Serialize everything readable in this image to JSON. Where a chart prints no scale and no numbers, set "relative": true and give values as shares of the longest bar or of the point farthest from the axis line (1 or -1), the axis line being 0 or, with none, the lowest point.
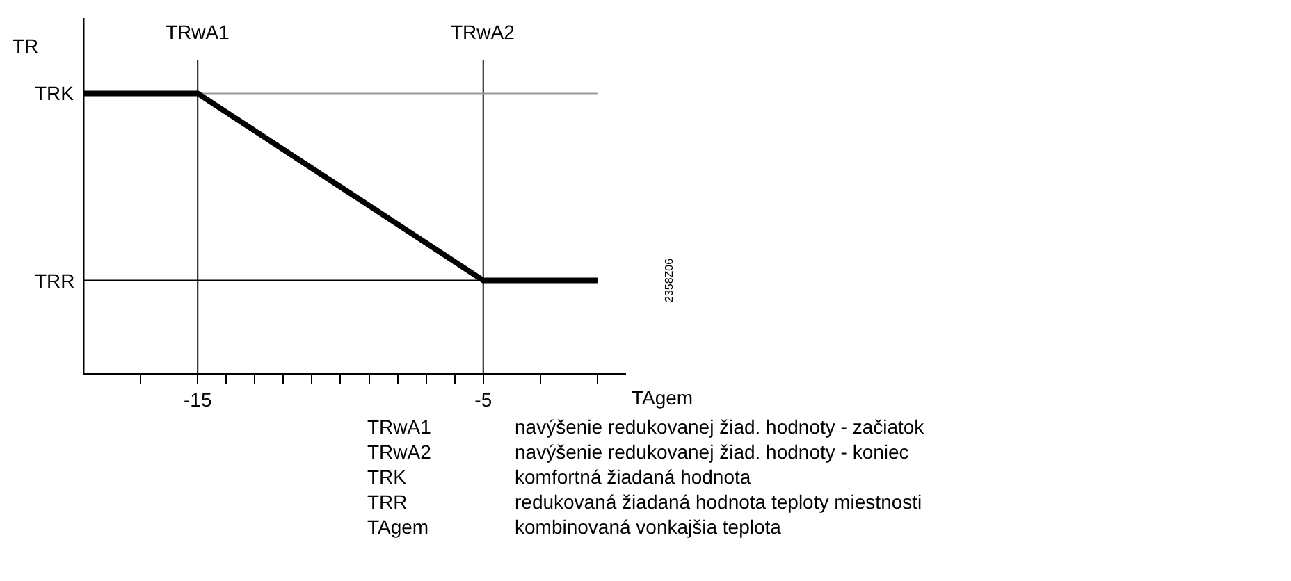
{
  "chart_data": {
    "type": "line",
    "relative": true,
    "ylabel": "TR",
    "xlabel": "TAgem",
    "x": [
      -19,
      -15,
      -5,
      -1
    ],
    "series": [
      {
        "color": "#000000",
        "values": [
          1,
          1,
          0.33,
          0.33
        ]
      }
    ],
    "xlim": [
      -19,
      0
    ],
    "xticks": [
      {
        "value": -17,
        "label": null
      },
      {
        "value": -15,
        "label": "-15"
      },
      {
        "value": -14,
        "label": null
      },
      {
        "value": -13,
        "label": null
      },
      {
        "value": -12,
        "label": null
      },
      {
        "value": -11,
        "label": null
      },
      {
        "value": -10,
        "label": null
      },
      {
        "value": -9,
        "label": null
      },
      {
        "value": -8,
        "label": null
      },
      {
        "value": -7,
        "label": null
      },
      {
        "value": -6,
        "label": null
      },
      {
        "value": -5,
        "label": "-5"
      },
      {
        "value": -3,
        "label": null
      },
      {
        "value": -1,
        "label": null
      }
    ],
    "ref_lines": [
      {
        "axis": "x",
        "value": -15,
        "label": "TRwA1",
        "color": "#000000"
      },
      {
        "axis": "x",
        "value": -5,
        "label": "TRwA2",
        "color": "#000000"
      },
      {
        "axis": "y",
        "value": 1,
        "label": "TRK",
        "color": "#999999"
      },
      {
        "axis": "y",
        "value": 0.33,
        "label": "TRR",
        "color": "#000000"
      }
    ],
    "marker": "none",
    "line_style": "solid",
    "annotations": [
      "TRwA1",
      "navýšenie redukovanej žiad. hodnoty - začiatok",
      "TRwA2",
      "navýšenie redukovanej žiad. hodnoty - koniec",
      "TRK",
      "komfortná žiadaná hodnota",
      "TRR",
      "redukovaná žiadaná hodnota teploty miestnosti",
      "TAgem",
      "kombinovaná vonkajšia teplota",
      "2358Z06"
    ]
  }
}
